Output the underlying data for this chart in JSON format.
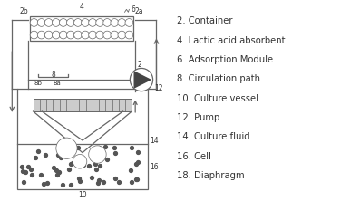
{
  "legend_items": [
    "2. Container",
    "4. Lactic acid absorbent",
    "6. Adsorption Module",
    "8. Circulation path",
    "10. Culture vessel",
    "12. Pump",
    "14. Culture fluid",
    "16. Cell",
    "18. Diaphragm"
  ],
  "line_color": "#666666",
  "text_color": "#333333",
  "label_fontsize": 7.2,
  "fig_width": 3.76,
  "fig_height": 2.22
}
